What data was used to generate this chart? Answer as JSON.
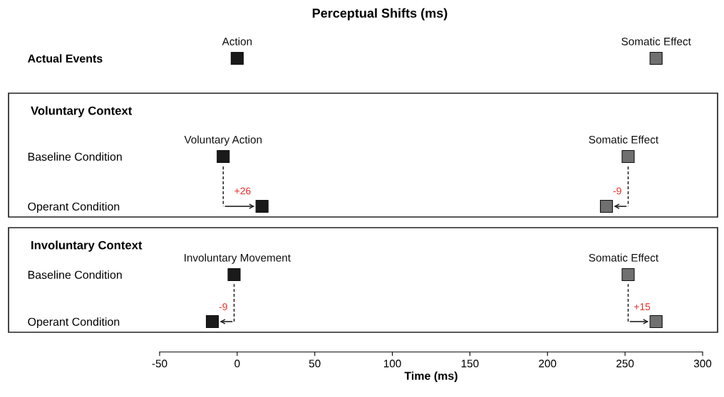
{
  "chart_data": [
    {
      "type": "scatter",
      "orientation": "horizontal",
      "title": "Perceptual Shifts (ms)",
      "categories": [
        "Actual Events"
      ],
      "marker": "square",
      "xlim": [
        -50,
        300
      ],
      "tick_labels": "y",
      "series": [
        {
          "color": "#1a1a1a",
          "values": [
            0
          ]
        },
        {
          "color": "#707070",
          "values": [
            270
          ]
        }
      ],
      "annotations": [
        {
          "text": "Action",
          "x": 0,
          "y": "Actual Events"
        },
        {
          "text": "Somatic Effect",
          "x": 270,
          "y": "Actual Events"
        }
      ]
    },
    {
      "type": "scatter",
      "orientation": "horizontal",
      "title": "Voluntary Context",
      "categories": [
        "Baseline Condition",
        "Operant Condition"
      ],
      "marker": "square",
      "xlim": [
        -50,
        300
      ],
      "tick_labels": "y",
      "series": [
        {
          "color": "#1a1a1a",
          "values": [
            -9,
            16
          ]
        },
        {
          "color": "#707070",
          "values": [
            252,
            238
          ]
        }
      ],
      "annotations": [
        {
          "text": "Voluntary Action",
          "x": -9,
          "y": "Baseline Condition"
        },
        {
          "text": "Somatic Effect",
          "x": 249,
          "y": "Baseline Condition"
        },
        {
          "text": "+26",
          "x": 16,
          "y": "Operant Condition"
        },
        {
          "text": "-9",
          "x": 238,
          "y": "Operant Condition"
        }
      ]
    },
    {
      "type": "scatter",
      "orientation": "horizontal",
      "title": "Involuntary Context",
      "categories": [
        "Baseline Condition",
        "Operant Condition"
      ],
      "marker": "square",
      "xlim": [
        -50,
        300
      ],
      "xticks": [
        -50,
        0,
        50,
        100,
        150,
        200,
        250,
        300
      ],
      "xlabel": "Time (ms)",
      "series": [
        {
          "color": "#1a1a1a",
          "values": [
            -2,
            -16
          ]
        },
        {
          "color": "#707070",
          "values": [
            252,
            270
          ]
        }
      ],
      "annotations": [
        {
          "text": "Involuntary Movement",
          "x": 0,
          "y": "Baseline Condition"
        },
        {
          "text": "Somatic Effect",
          "x": 249,
          "y": "Baseline Condition"
        },
        {
          "text": "-9",
          "x": -16,
          "y": "Operant Condition"
        },
        {
          "text": "+15",
          "x": 270,
          "y": "Operant Condition"
        }
      ]
    }
  ]
}
